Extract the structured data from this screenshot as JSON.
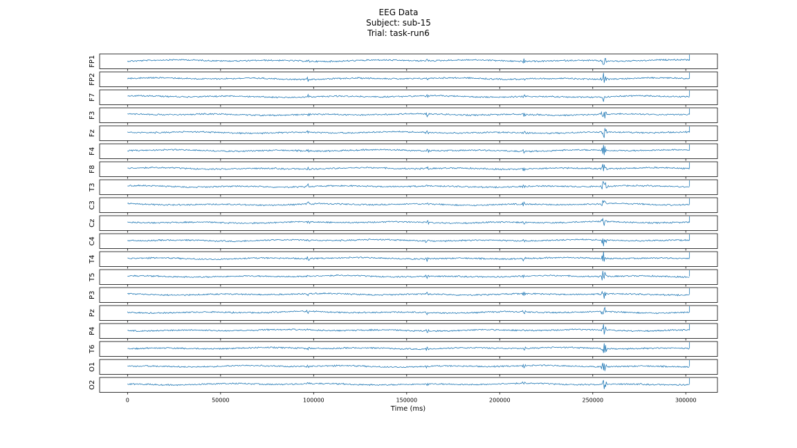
{
  "chart_data": {
    "type": "line",
    "title": "EEG Data",
    "subtitle_lines": [
      "Subject: sub-15",
      "Trial: task-run6"
    ],
    "xlabel": "Time (ms)",
    "ylabel": "",
    "xlim": [
      -15000,
      317000
    ],
    "x_ticks": [
      0,
      50000,
      100000,
      150000,
      200000,
      250000,
      300000
    ],
    "x_tick_labels": [
      "0",
      "50000",
      "100000",
      "150000",
      "200000",
      "250000",
      "300000"
    ],
    "signal_range_ms": [
      0,
      302000
    ],
    "artifact_times_ms": [
      97000,
      161000,
      213000,
      256000
    ],
    "grid": false,
    "line_color": "#1f77b4",
    "channels": [
      "FP1",
      "FP2",
      "F7",
      "F3",
      "Fz",
      "F4",
      "F8",
      "T3",
      "C3",
      "Cz",
      "C4",
      "T4",
      "T5",
      "P3",
      "Pz",
      "P4",
      "T6",
      "O1",
      "O2"
    ]
  }
}
